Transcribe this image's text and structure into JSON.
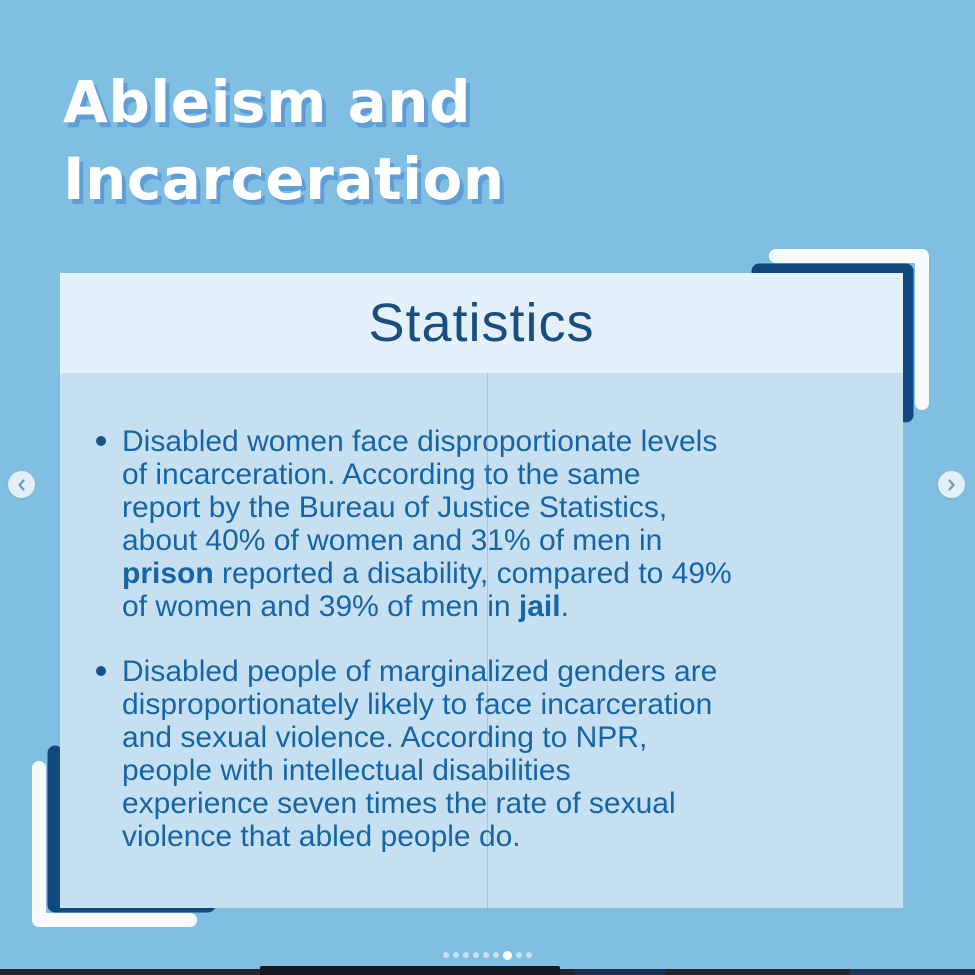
{
  "slide": {
    "title_lines": [
      "Ableism and",
      "Incarceration"
    ],
    "card": {
      "title": "Statistics",
      "bullets": [
        {
          "lines": [
            [
              {
                "t": "Disabled women face disproportionate levels"
              }
            ],
            [
              {
                "t": "of incarceration. According to the same"
              }
            ],
            [
              {
                "t": "report by the Bureau of Justice Statistics,"
              }
            ],
            [
              {
                "t": "about 40% of women and 31% of men in"
              }
            ],
            [
              {
                "t": "prison",
                "b": true
              },
              {
                "t": " reported a disability, compared to 49%"
              }
            ],
            [
              {
                "t": "of women and 39% of men in "
              },
              {
                "t": "jail",
                "b": true
              },
              {
                "t": "."
              }
            ]
          ]
        },
        {
          "lines": [
            [
              {
                "t": "Disabled people of marginalized genders are"
              }
            ],
            [
              {
                "t": "disproportionately likely to face incarceration"
              }
            ],
            [
              {
                "t": "and sexual violence. According to NPR,"
              }
            ],
            [
              {
                "t": "people with intellectual disabilities"
              }
            ],
            [
              {
                "t": "experience seven times the rate of sexual"
              }
            ],
            [
              {
                "t": "violence that abled people do."
              }
            ]
          ]
        }
      ]
    }
  },
  "carousel": {
    "prev_icon": "chevron-left",
    "next_icon": "chevron-right",
    "dots_count": 9,
    "active_dot_index": 6
  },
  "colors": {
    "background": "#80BFE2",
    "card_body": "#C6E0F2",
    "card_header": "#E4F1FA",
    "navy_accent": "#10497E",
    "bracket_white": "#F7FBFE",
    "body_text": "#1666A6",
    "card_title_text": "#1A4E7E",
    "page_title_text": "#FFFFFF",
    "page_title_shadow": "#5D9DD8"
  }
}
